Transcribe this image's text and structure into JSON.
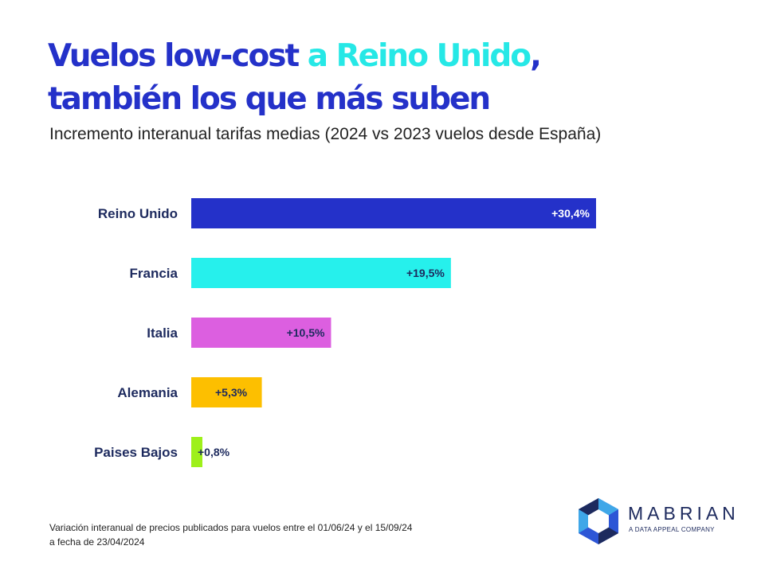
{
  "header": {
    "title_part1": "Vuelos low-cost ",
    "title_highlight": "a Reino Unido",
    "title_part2": ",",
    "title_line2": "también los que más suben",
    "subtitle": "Incremento interanual tarifas medias (2024 vs 2023 vuelos desde España)"
  },
  "chart_data": {
    "type": "bar",
    "orientation": "horizontal",
    "categories": [
      "Reino Unido",
      "Francia",
      "Italia",
      "Alemania",
      "Paises Bajos"
    ],
    "values": [
      30.4,
      19.5,
      10.5,
      5.3,
      0.8
    ],
    "labels": [
      "+30,4%",
      "+19,5%",
      "+10,5%",
      "+5,3%",
      "+0,8%"
    ],
    "unit": "%",
    "colors": [
      "#2431c9",
      "#26f0ec",
      "#dc5fe0",
      "#fdbf00",
      "#9ef01a"
    ],
    "label_colors": [
      "#ffffff",
      "#1d2a5e",
      "#1d2a5e",
      "#1d2a5e",
      "#1d2a5e"
    ],
    "xlim": [
      0,
      30.4
    ],
    "grid": false
  },
  "footnote": {
    "line1": "Variación interanual de precios publicados para vuelos entre el 01/06/24 y el 15/09/24",
    "line2": "a fecha de 23/04/2024"
  },
  "logo": {
    "name": "MABRIAN",
    "tagline": "A DATA APPEAL COMPANY",
    "colors": [
      "#1d2a5e",
      "#2d56d6",
      "#3fa7e8"
    ]
  }
}
